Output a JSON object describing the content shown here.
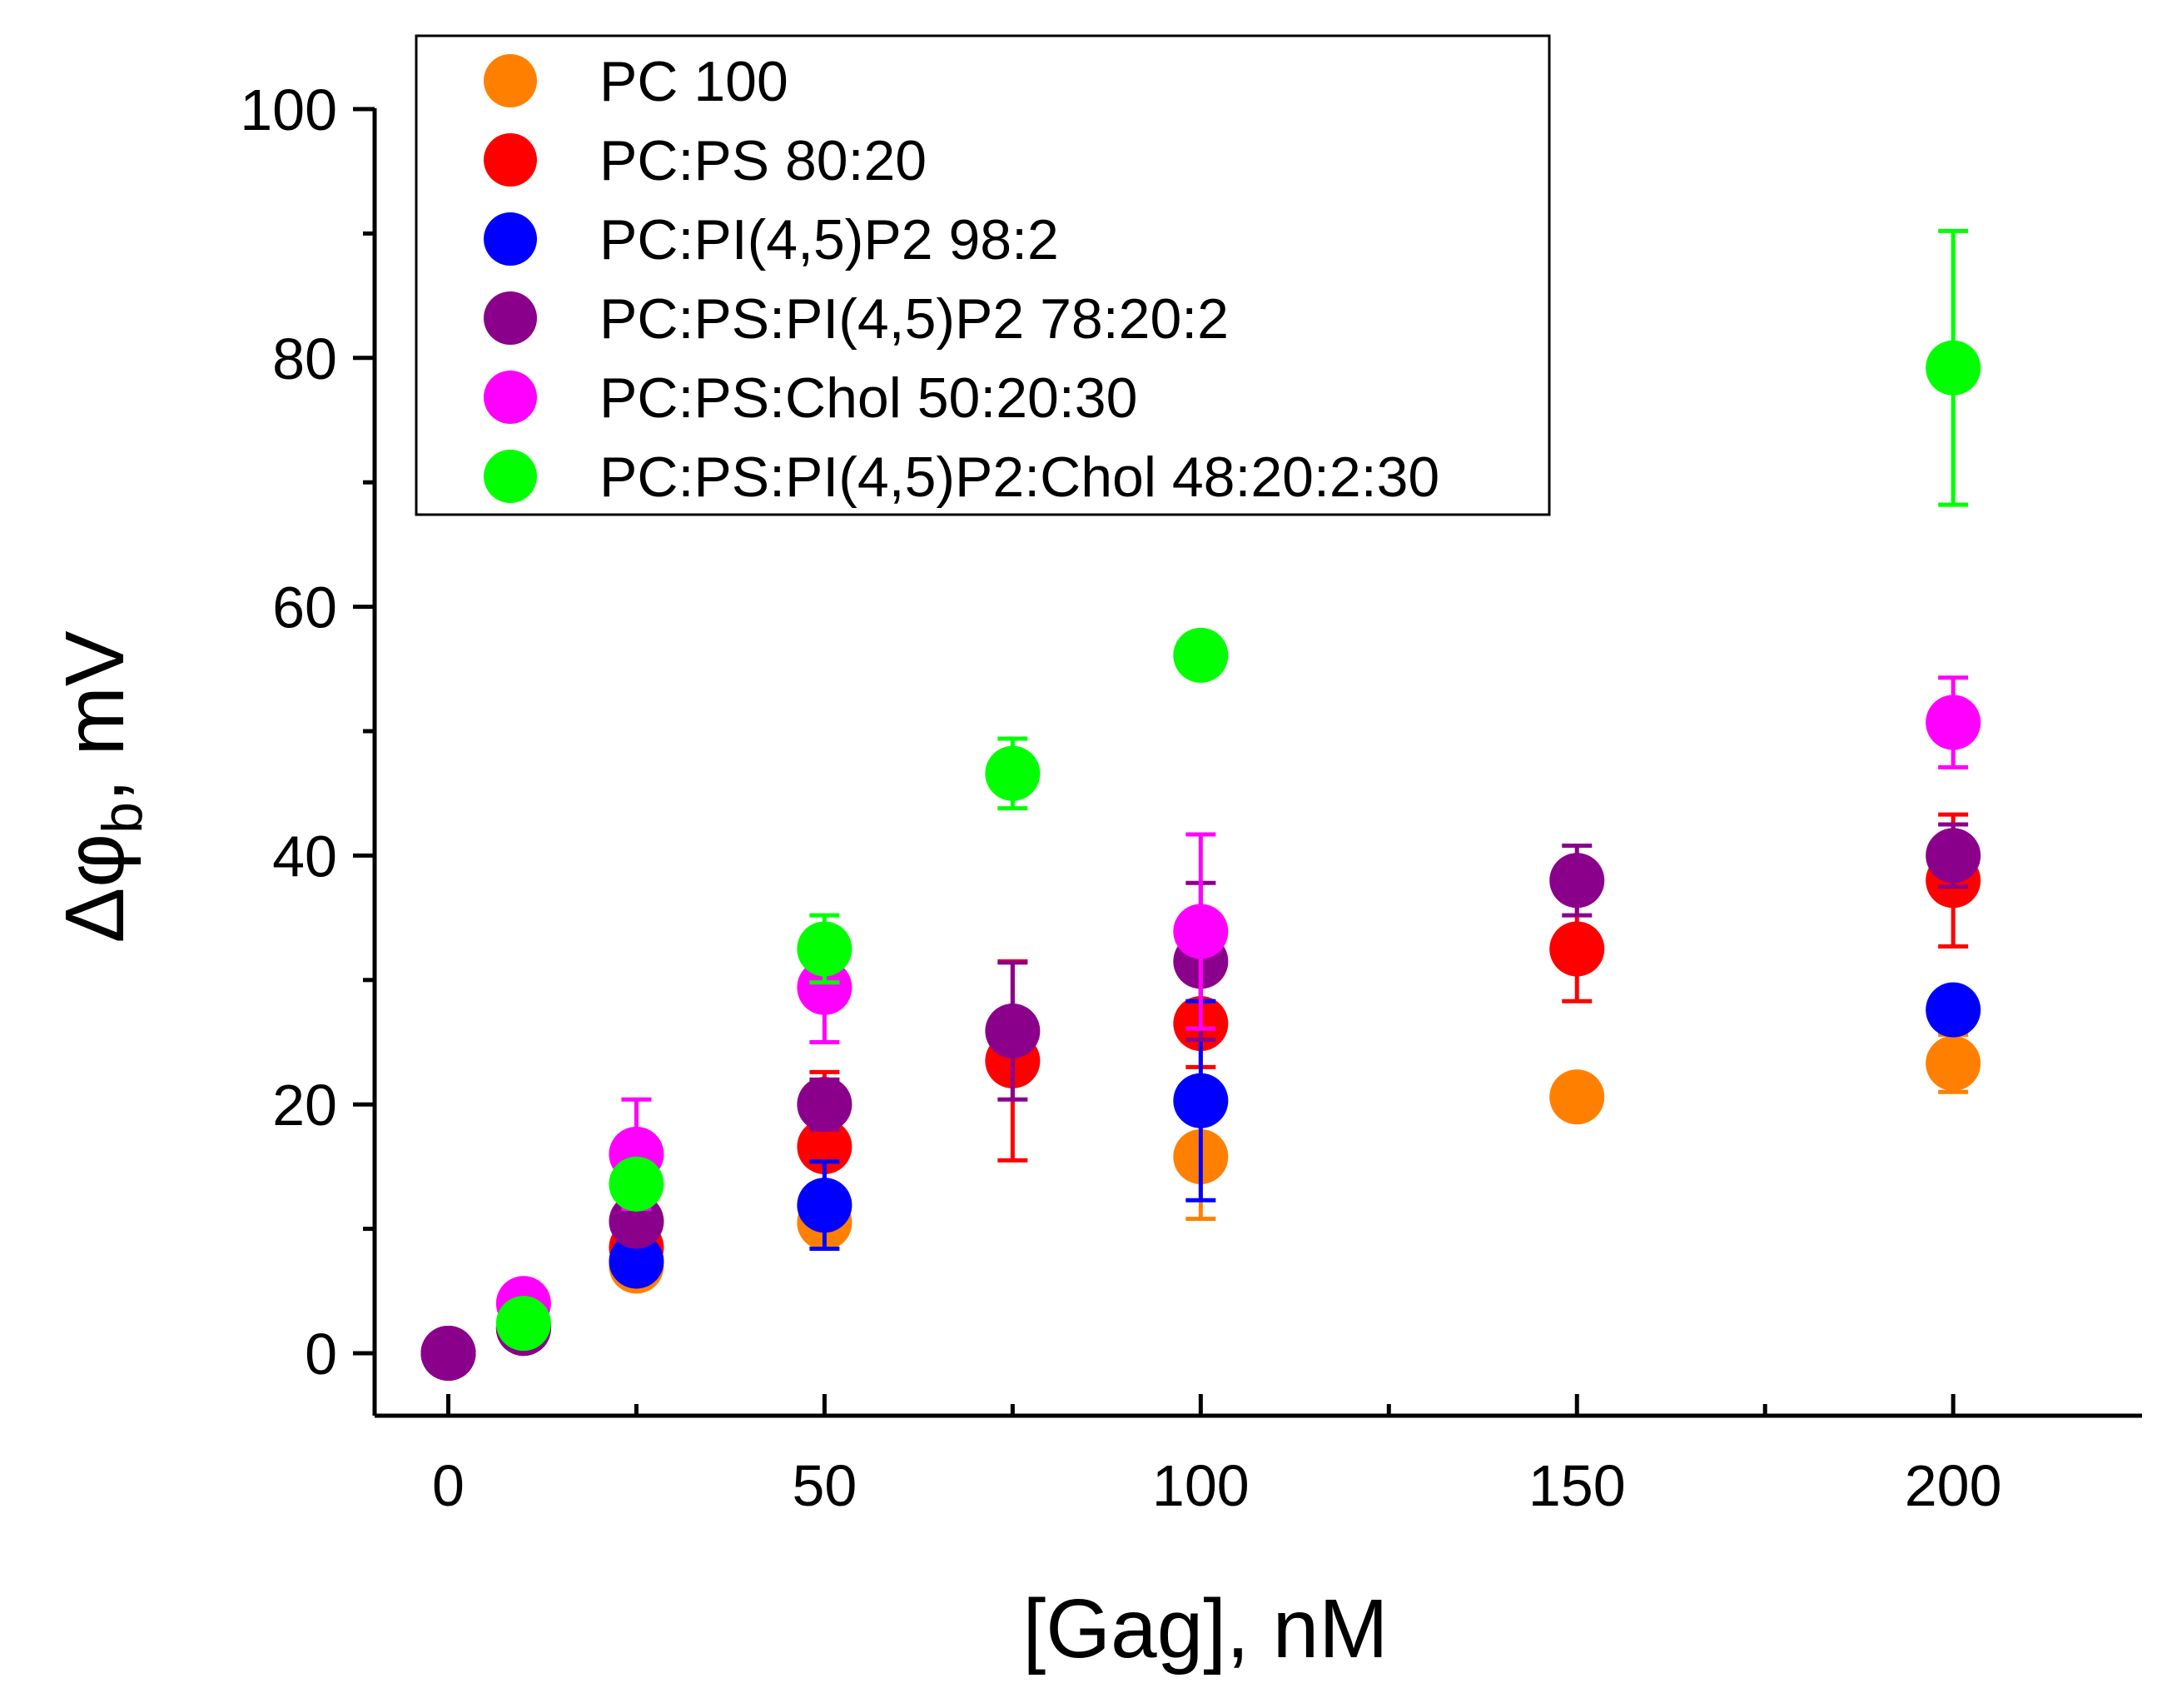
{
  "chart_data": {
    "type": "scatter",
    "xlabel": "[Gag], nM",
    "ylabel_symbol": "Δφ",
    "ylabel_subscript": "b",
    "ylabel_unit": ", mV",
    "xlim": [
      -10,
      225
    ],
    "ylim": [
      -5,
      105
    ],
    "xticks": [
      0,
      50,
      100,
      150,
      200
    ],
    "xticks_minor": [
      25,
      75,
      125,
      175
    ],
    "yticks": [
      0,
      20,
      40,
      60,
      80,
      100
    ],
    "yticks_minor": [
      10,
      30,
      50,
      70,
      90
    ],
    "legend_position": "top-left",
    "series": [
      {
        "name": "PC 100",
        "color": "#FF8000",
        "points": [
          {
            "x": 0,
            "y": 0,
            "err": 0
          },
          {
            "x": 10,
            "y": 2,
            "err": 0.5
          },
          {
            "x": 25,
            "y": 7,
            "err": 1.5
          },
          {
            "x": 50,
            "y": 10.5,
            "err": 1.5
          },
          {
            "x": 100,
            "y": 15.8,
            "err": 5
          },
          {
            "x": 150,
            "y": 20.6,
            "err": 1.5
          },
          {
            "x": 200,
            "y": 23.3,
            "err": 2.3
          }
        ]
      },
      {
        "name": "PC:PS 80:20",
        "color": "#FF0000",
        "points": [
          {
            "x": 0,
            "y": 0,
            "err": 0
          },
          {
            "x": 10,
            "y": 2,
            "err": 0.5
          },
          {
            "x": 25,
            "y": 8.5,
            "err": 1.5
          },
          {
            "x": 50,
            "y": 16.6,
            "err": 6
          },
          {
            "x": 75,
            "y": 23.5,
            "err": 8
          },
          {
            "x": 100,
            "y": 26.5,
            "err": 3.5
          },
          {
            "x": 150,
            "y": 32.5,
            "err": 4.2
          },
          {
            "x": 200,
            "y": 38,
            "err": 5.3
          }
        ]
      },
      {
        "name": "PC:PI(4,5)P2 98:2",
        "color": "#0000FF",
        "points": [
          {
            "x": 0,
            "y": 0,
            "err": 0
          },
          {
            "x": 10,
            "y": 2,
            "err": 0.5
          },
          {
            "x": 25,
            "y": 7.4,
            "err": 1
          },
          {
            "x": 50,
            "y": 11.9,
            "err": 3.5
          },
          {
            "x": 100,
            "y": 20.3,
            "err": 8
          },
          {
            "x": 200,
            "y": 27.6,
            "err": 1
          }
        ]
      },
      {
        "name": "PC:PS:PI(4,5)P2 78:20:2",
        "color": "#8B008B",
        "points": [
          {
            "x": 0,
            "y": 0,
            "err": 0
          },
          {
            "x": 10,
            "y": 2,
            "err": 0.8
          },
          {
            "x": 25,
            "y": 10.6,
            "err": 1.5
          },
          {
            "x": 50,
            "y": 20,
            "err": 2
          },
          {
            "x": 75,
            "y": 25.9,
            "err": 5.5
          },
          {
            "x": 100,
            "y": 31.5,
            "err": 6.3
          },
          {
            "x": 150,
            "y": 38,
            "err": 2.8
          },
          {
            "x": 200,
            "y": 40,
            "err": 2.5
          }
        ]
      },
      {
        "name": "PC:PS:Chol 50:20:30",
        "color": "#FF00FF",
        "points": [
          {
            "x": 10,
            "y": 4,
            "err": 0.5
          },
          {
            "x": 25,
            "y": 16,
            "err": 4.4
          },
          {
            "x": 50,
            "y": 29.4,
            "err": 4.4
          },
          {
            "x": 100,
            "y": 33.9,
            "err": 7.8
          },
          {
            "x": 200,
            "y": 50.7,
            "err": 3.6
          }
        ]
      },
      {
        "name": "PC:PS:PI(4,5)P2:Chol 48:20:2:30",
        "color": "#00FF00",
        "points": [
          {
            "x": 10,
            "y": 2.4,
            "err": 0.5
          },
          {
            "x": 25,
            "y": 13.6,
            "err": 0.5
          },
          {
            "x": 50,
            "y": 32.5,
            "err": 2.7
          },
          {
            "x": 75,
            "y": 46.6,
            "err": 2.8
          },
          {
            "x": 100,
            "y": 56.1,
            "err": 0.5
          },
          {
            "x": 200,
            "y": 79.2,
            "err": 11
          }
        ]
      }
    ]
  }
}
